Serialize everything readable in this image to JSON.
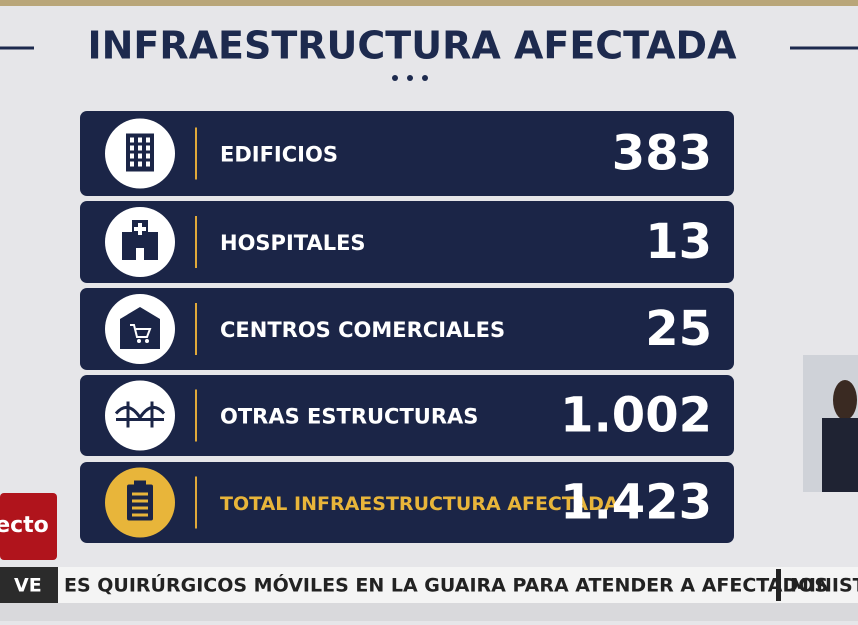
{
  "header": {
    "title": "INFRAESTRUCTURA AFECTADA"
  },
  "rows": [
    {
      "label": "EDIFICIOS",
      "value": "383"
    },
    {
      "label": "HOSPITALES",
      "value": "13"
    },
    {
      "label": "CENTROS COMERCIALES",
      "value": "25"
    },
    {
      "label": "OTRAS ESTRUCTURAS",
      "value": "1.002"
    },
    {
      "label": "TOTAL INFRAESTRUCTURA AFECTADA",
      "value": "1.423"
    }
  ],
  "badge": "ecto",
  "ticker": {
    "tag": "VE",
    "text": "ES QUIRÚRGICOS MÓVILES EN LA GUAIRA PARA ATENDER A AFECTADOS",
    "next": "MINIST"
  }
}
